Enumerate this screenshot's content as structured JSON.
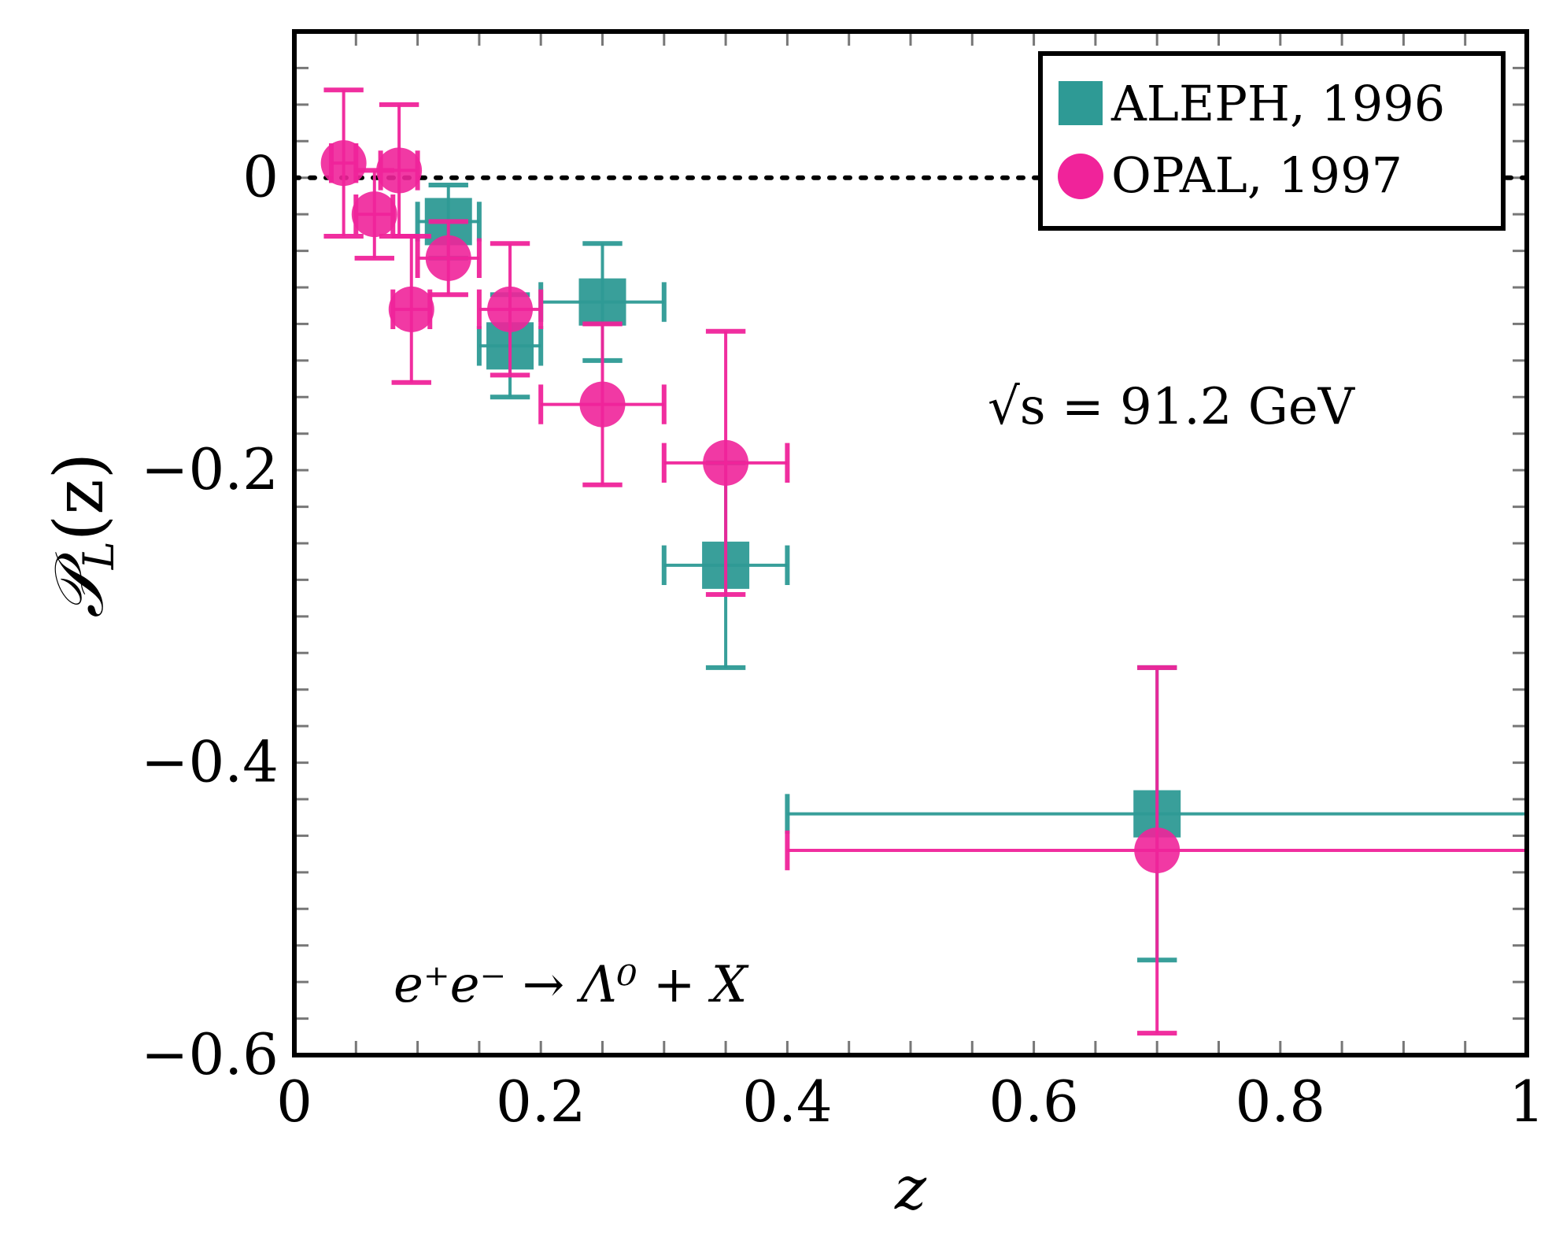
{
  "chart_data": {
    "type": "scatter",
    "xlabel": "z",
    "ylabel": "P_L(z)",
    "ylabel_display": {
      "main": "𝒫",
      "sub": "L",
      "rest": "(z)"
    },
    "xlim": [
      0,
      1
    ],
    "ylim": [
      -0.6,
      0.1
    ],
    "x_ticks": [
      0,
      0.2,
      0.4,
      0.6,
      0.8,
      1
    ],
    "x_tick_labels": [
      "0",
      "0.2",
      "0.4",
      "0.6",
      "0.8",
      "1"
    ],
    "y_ticks": [
      0,
      -0.2,
      -0.4,
      -0.6
    ],
    "y_tick_labels": [
      "0",
      "−0.2",
      "−0.4",
      "−0.6"
    ],
    "reference_line": {
      "y": 0,
      "style": "dotted"
    },
    "legend_position": "top-right",
    "annotations": [
      {
        "name": "energy-annotation",
        "text": "√s = 91.2 GeV"
      },
      {
        "name": "process-annotation",
        "text": "e⁺e⁻ → Λ⁰ + X"
      }
    ],
    "series": [
      {
        "name": "ALEPH, 1996",
        "marker": "square",
        "color": "#2e9a95",
        "points": [
          {
            "x": 0.125,
            "y": -0.03,
            "xerr": [
              0.025,
              0.025
            ],
            "yerr": [
              0.025,
              0.025
            ]
          },
          {
            "x": 0.175,
            "y": -0.115,
            "xerr": [
              0.025,
              0.025
            ],
            "yerr": [
              0.035,
              0.035
            ]
          },
          {
            "x": 0.25,
            "y": -0.085,
            "xerr": [
              0.05,
              0.05
            ],
            "yerr": [
              0.04,
              0.04
            ]
          },
          {
            "x": 0.35,
            "y": -0.265,
            "xerr": [
              0.05,
              0.05
            ],
            "yerr": [
              0.07,
              0.07
            ]
          },
          {
            "x": 0.7,
            "y": -0.435,
            "xerr": [
              0.3,
              0.3
            ],
            "yerr": [
              0.1,
              0.1
            ]
          }
        ]
      },
      {
        "name": "OPAL, 1997",
        "marker": "circle",
        "color": "#f0239a",
        "points": [
          {
            "x": 0.04,
            "y": 0.01,
            "xerr": [
              0.01,
              0.01
            ],
            "yerr": [
              0.05,
              0.05
            ]
          },
          {
            "x": 0.065,
            "y": -0.025,
            "xerr": [
              0.015,
              0.015
            ],
            "yerr": [
              0.03,
              0.03
            ]
          },
          {
            "x": 0.085,
            "y": 0.005,
            "xerr": [
              0.015,
              0.015
            ],
            "yerr": [
              0.045,
              0.045
            ]
          },
          {
            "x": 0.095,
            "y": -0.09,
            "xerr": [
              0.015,
              0.015
            ],
            "yerr": [
              0.05,
              0.05
            ]
          },
          {
            "x": 0.125,
            "y": -0.055,
            "xerr": [
              0.025,
              0.025
            ],
            "yerr": [
              0.025,
              0.025
            ]
          },
          {
            "x": 0.175,
            "y": -0.09,
            "xerr": [
              0.025,
              0.025
            ],
            "yerr": [
              0.045,
              0.045
            ]
          },
          {
            "x": 0.25,
            "y": -0.155,
            "xerr": [
              0.05,
              0.05
            ],
            "yerr": [
              0.055,
              0.055
            ]
          },
          {
            "x": 0.35,
            "y": -0.195,
            "xerr": [
              0.05,
              0.05
            ],
            "yerr": [
              0.09,
              0.09
            ]
          },
          {
            "x": 0.7,
            "y": -0.46,
            "xerr": [
              0.3,
              0.3
            ],
            "yerr": [
              0.125,
              0.125
            ]
          }
        ]
      }
    ]
  }
}
